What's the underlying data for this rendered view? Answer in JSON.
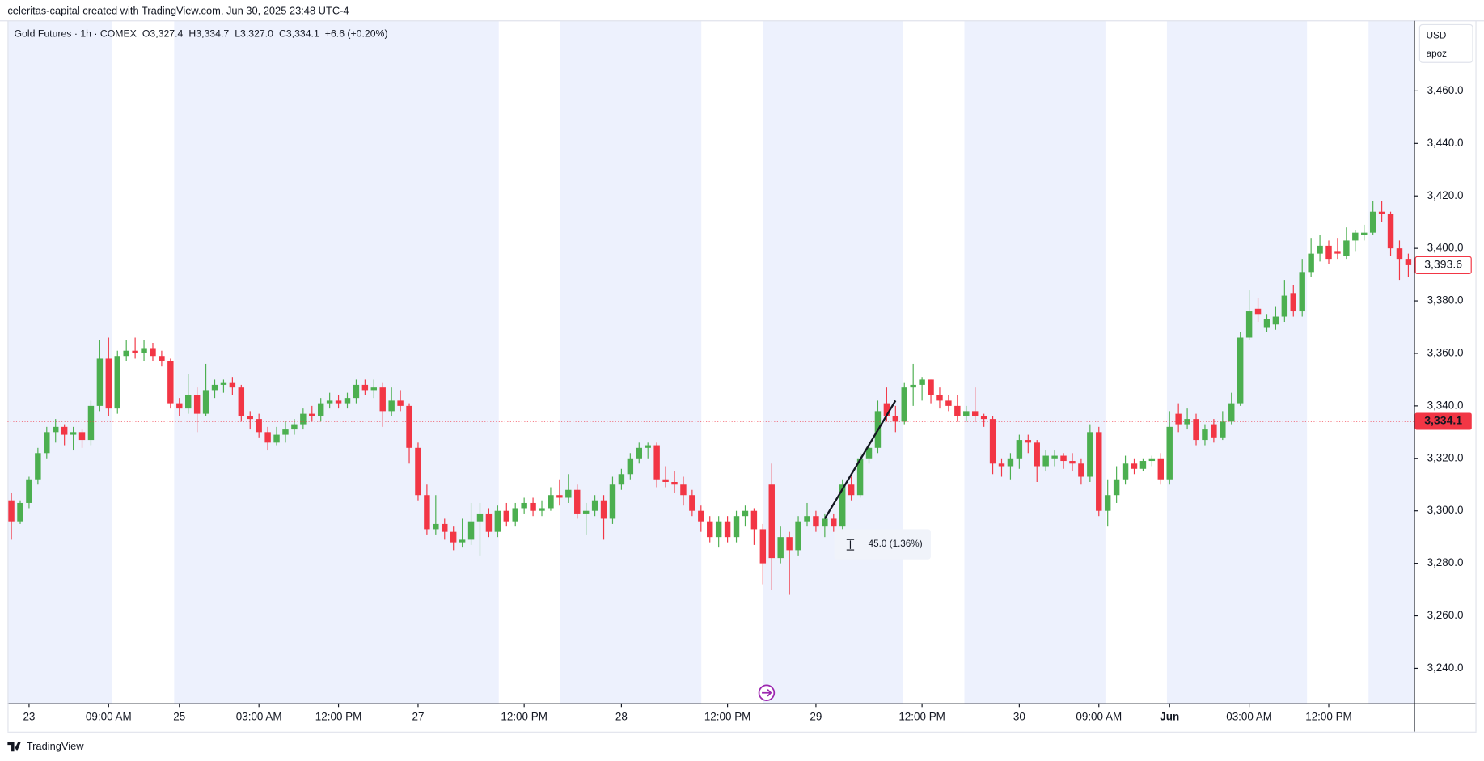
{
  "header": {
    "attribution": "celeritas-capital created with TradingView.com, Jun 30, 2025 23:48 UTC-4",
    "footer": "TradingView"
  },
  "chart_data": {
    "type": "candlestick",
    "symbol": "Gold Futures · 1h · COMEX",
    "legend_values": [
      {
        "name": "O",
        "value": 3327.4,
        "label": "3,327.4"
      },
      {
        "name": "H",
        "value": 3334.7,
        "label": "3,334.7"
      },
      {
        "name": "L",
        "value": 3327.0,
        "label": "3,327.0"
      },
      {
        "name": "C",
        "value": 3334.1,
        "label": "3,334.1"
      }
    ],
    "change": "+6.6 (+0.20%)",
    "currency": "USD",
    "axis_note": "apoz",
    "up_color": "#4caf50",
    "down_color": "#f23645",
    "ohlc": [
      [
        3304,
        3307,
        3289,
        3296
      ],
      [
        3296,
        3304,
        3295,
        3303
      ],
      [
        3303,
        3313,
        3301,
        3312
      ],
      [
        3312,
        3324,
        3310,
        3322
      ],
      [
        3322,
        3332,
        3320,
        3330
      ],
      [
        3330,
        3335,
        3326,
        3332
      ],
      [
        3332,
        3333,
        3325,
        3329
      ],
      [
        3329,
        3332,
        3323,
        3330
      ],
      [
        3330,
        3331,
        3324,
        3327
      ],
      [
        3327,
        3342,
        3325,
        3340
      ],
      [
        3340,
        3365,
        3338,
        3358
      ],
      [
        3358,
        3366,
        3336,
        3339
      ],
      [
        3339,
        3361,
        3337,
        3359
      ],
      [
        3359,
        3365,
        3357,
        3361
      ],
      [
        3361,
        3366,
        3358,
        3360
      ],
      [
        3360,
        3365,
        3357,
        3362
      ],
      [
        3362,
        3364,
        3357,
        3359
      ],
      [
        3359,
        3361,
        3355,
        3357
      ],
      [
        3357,
        3358,
        3339,
        3341
      ],
      [
        3341,
        3343,
        3336,
        3339
      ],
      [
        3339,
        3352,
        3337,
        3344
      ],
      [
        3344,
        3347,
        3330,
        3337
      ],
      [
        3337,
        3356,
        3336,
        3346
      ],
      [
        3346,
        3350,
        3343,
        3348
      ],
      [
        3348,
        3350,
        3345,
        3349
      ],
      [
        3349,
        3351,
        3344,
        3347
      ],
      [
        3347,
        3348,
        3334,
        3336
      ],
      [
        3336,
        3338,
        3331,
        3335
      ],
      [
        3335,
        3337,
        3328,
        3330
      ],
      [
        3330,
        3332,
        3323,
        3326
      ],
      [
        3326,
        3332,
        3325,
        3329
      ],
      [
        3329,
        3334,
        3326,
        3331
      ],
      [
        3331,
        3335,
        3329,
        3333
      ],
      [
        3333,
        3339,
        3331,
        3337
      ],
      [
        3337,
        3340,
        3334,
        3336
      ],
      [
        3336,
        3343,
        3334,
        3341
      ],
      [
        3341,
        3345,
        3339,
        3342
      ],
      [
        3342,
        3344,
        3339,
        3341
      ],
      [
        3341,
        3345,
        3339,
        3343
      ],
      [
        3343,
        3350,
        3341,
        3348
      ],
      [
        3348,
        3350,
        3344,
        3346
      ],
      [
        3346,
        3350,
        3343,
        3347
      ],
      [
        3347,
        3349,
        3332,
        3338
      ],
      [
        3338,
        3347,
        3336,
        3342
      ],
      [
        3342,
        3346,
        3338,
        3340
      ],
      [
        3340,
        3341,
        3318,
        3324
      ],
      [
        3324,
        3326,
        3304,
        3306
      ],
      [
        3306,
        3310,
        3291,
        3293
      ],
      [
        3293,
        3306,
        3291,
        3295
      ],
      [
        3295,
        3297,
        3289,
        3292
      ],
      [
        3292,
        3294,
        3285,
        3288
      ],
      [
        3288,
        3297,
        3286,
        3289
      ],
      [
        3289,
        3303,
        3287,
        3296
      ],
      [
        3296,
        3303,
        3283,
        3299
      ],
      [
        3299,
        3301,
        3290,
        3292
      ],
      [
        3292,
        3302,
        3290,
        3300
      ],
      [
        3300,
        3303,
        3294,
        3296
      ],
      [
        3296,
        3303,
        3294,
        3301
      ],
      [
        3301,
        3305,
        3299,
        3303
      ],
      [
        3303,
        3305,
        3298,
        3300
      ],
      [
        3300,
        3304,
        3298,
        3301
      ],
      [
        3301,
        3309,
        3300,
        3306
      ],
      [
        3306,
        3312,
        3302,
        3305
      ],
      [
        3305,
        3314,
        3303,
        3308
      ],
      [
        3308,
        3310,
        3297,
        3299
      ],
      [
        3299,
        3303,
        3291,
        3300
      ],
      [
        3300,
        3306,
        3298,
        3304
      ],
      [
        3304,
        3306,
        3289,
        3297
      ],
      [
        3297,
        3313,
        3295,
        3310
      ],
      [
        3310,
        3316,
        3308,
        3314
      ],
      [
        3314,
        3322,
        3312,
        3320
      ],
      [
        3320,
        3326,
        3318,
        3324
      ],
      [
        3324,
        3326,
        3320,
        3325
      ],
      [
        3325,
        3326,
        3309,
        3312
      ],
      [
        3312,
        3317,
        3309,
        3311
      ],
      [
        3311,
        3315,
        3307,
        3310
      ],
      [
        3310,
        3313,
        3302,
        3306
      ],
      [
        3306,
        3308,
        3298,
        3300
      ],
      [
        3300,
        3302,
        3292,
        3296
      ],
      [
        3296,
        3298,
        3288,
        3290
      ],
      [
        3290,
        3298,
        3286,
        3296
      ],
      [
        3296,
        3298,
        3288,
        3290
      ],
      [
        3290,
        3300,
        3288,
        3298
      ],
      [
        3298,
        3302,
        3294,
        3300
      ],
      [
        3300,
        3301,
        3287,
        3293
      ],
      [
        3293,
        3295,
        3272,
        3280
      ],
      [
        3310,
        3318,
        3270,
        3282
      ],
      [
        3282,
        3294,
        3280,
        3290
      ],
      [
        3290,
        3292,
        3268,
        3285
      ],
      [
        3285,
        3298,
        3283,
        3296
      ],
      [
        3296,
        3303,
        3294,
        3298
      ],
      [
        3298,
        3300,
        3292,
        3294
      ],
      [
        3294,
        3299,
        3290,
        3297
      ],
      [
        3297,
        3299,
        3292,
        3294
      ],
      [
        3294,
        3312,
        3293,
        3310
      ],
      [
        3310,
        3313,
        3304,
        3306
      ],
      [
        3306,
        3322,
        3305,
        3320
      ],
      [
        3320,
        3326,
        3318,
        3324
      ],
      [
        3324,
        3342,
        3322,
        3338
      ],
      [
        3341,
        3347,
        3334,
        3336
      ],
      [
        3336,
        3340,
        3330,
        3334
      ],
      [
        3334,
        3349,
        3333,
        3347
      ],
      [
        3347,
        3356,
        3340,
        3348
      ],
      [
        3348,
        3351,
        3342,
        3350
      ],
      [
        3350,
        3350,
        3341,
        3344
      ],
      [
        3344,
        3347,
        3339,
        3342
      ],
      [
        3342,
        3344,
        3338,
        3340
      ],
      [
        3340,
        3344,
        3334,
        3336
      ],
      [
        3336,
        3340,
        3334,
        3338
      ],
      [
        3338,
        3347,
        3334,
        3336
      ],
      [
        3336,
        3337,
        3332,
        3335
      ],
      [
        3335,
        3336,
        3314,
        3318
      ],
      [
        3318,
        3320,
        3313,
        3317
      ],
      [
        3317,
        3322,
        3312,
        3320
      ],
      [
        3320,
        3329,
        3316,
        3327
      ],
      [
        3327,
        3329,
        3322,
        3326
      ],
      [
        3326,
        3327,
        3311,
        3317
      ],
      [
        3317,
        3323,
        3315,
        3321
      ],
      [
        3320,
        3323,
        3317,
        3321
      ],
      [
        3321,
        3322,
        3316,
        3319
      ],
      [
        3319,
        3322,
        3315,
        3318
      ],
      [
        3318,
        3320,
        3310,
        3313
      ],
      [
        3313,
        3333,
        3311,
        3330
      ],
      [
        3330,
        3332,
        3298,
        3300
      ],
      [
        3300,
        3312,
        3294,
        3306
      ],
      [
        3306,
        3317,
        3303,
        3312
      ],
      [
        3312,
        3321,
        3310,
        3318
      ],
      [
        3318,
        3320,
        3314,
        3316
      ],
      [
        3316,
        3320,
        3315,
        3319
      ],
      [
        3319,
        3321,
        3317,
        3320
      ],
      [
        3320,
        3322,
        3310,
        3312
      ],
      [
        3312,
        3338,
        3310,
        3332
      ],
      [
        3337,
        3341,
        3330,
        3333
      ],
      [
        3333,
        3339,
        3331,
        3335
      ],
      [
        3335,
        3337,
        3325,
        3327
      ],
      [
        3327,
        3333,
        3325,
        3331
      ],
      [
        3333,
        3335,
        3326,
        3328
      ],
      [
        3328,
        3338,
        3327,
        3334
      ],
      [
        3334,
        3345,
        3333,
        3341
      ],
      [
        3341,
        3368,
        3340,
        3366
      ],
      [
        3366,
        3384,
        3365,
        3376
      ],
      [
        3377,
        3381,
        3372,
        3375
      ],
      [
        3370,
        3375,
        3368,
        3373
      ],
      [
        3371,
        3378,
        3369,
        3374
      ],
      [
        3374,
        3388,
        3372,
        3382
      ],
      [
        3383,
        3386,
        3374,
        3376
      ],
      [
        3376,
        3396,
        3374,
        3391
      ],
      [
        3391,
        3404,
        3389,
        3398
      ],
      [
        3398,
        3405,
        3395,
        3401
      ],
      [
        3401,
        3403,
        3394,
        3396
      ],
      [
        3399,
        3404,
        3396,
        3398
      ],
      [
        3397,
        3408,
        3396,
        3403
      ],
      [
        3403,
        3407,
        3399,
        3406
      ],
      [
        3405,
        3409,
        3403,
        3406
      ],
      [
        3406,
        3418,
        3405,
        3414
      ],
      [
        3414,
        3418,
        3410,
        3413
      ],
      [
        3413,
        3414,
        3397,
        3400
      ],
      [
        3400,
        3403,
        3388,
        3396
      ],
      [
        3396,
        3398,
        3389,
        3393.6
      ]
    ],
    "xlim": [
      -0.43,
      158.64
    ],
    "xticks": [
      {
        "value": 2,
        "label": "23"
      },
      {
        "value": 11,
        "label": "09:00 AM"
      },
      {
        "value": 19,
        "label": "25"
      },
      {
        "value": 28,
        "label": "03:00 AM"
      },
      {
        "value": 37,
        "label": "12:00 PM"
      },
      {
        "value": 46,
        "label": "27"
      },
      {
        "value": 58,
        "label": "12:00 PM"
      },
      {
        "value": 69,
        "label": "28"
      },
      {
        "value": 81,
        "label": "12:00 PM"
      },
      {
        "value": 91,
        "label": "29"
      },
      {
        "value": 103,
        "label": "12:00 PM"
      },
      {
        "value": 114,
        "label": "30"
      },
      {
        "value": 123,
        "label": "09:00 AM"
      },
      {
        "value": 131,
        "label": "Jun"
      },
      {
        "value": 140,
        "label": "03:00 AM"
      },
      {
        "value": 149,
        "label": "12:00 PM"
      }
    ],
    "ylim": [
      3226.7,
      3486.7
    ],
    "yticks": [
      {
        "value": 3240,
        "label": "3,240.0"
      },
      {
        "value": 3260,
        "label": "3,260.0"
      },
      {
        "value": 3280,
        "label": "3,280.0"
      },
      {
        "value": 3300,
        "label": "3,300.0"
      },
      {
        "value": 3320,
        "label": "3,320.0"
      },
      {
        "value": 3340,
        "label": "3,340.0"
      },
      {
        "value": 3360,
        "label": "3,360.0"
      },
      {
        "value": 3380,
        "label": "3,380.0"
      },
      {
        "value": 3400,
        "label": "3,400.0"
      },
      {
        "value": 3420,
        "label": "3,420.0"
      },
      {
        "value": 3440,
        "label": "3,440.0"
      },
      {
        "value": 3460,
        "label": "3,460.0"
      }
    ],
    "price_lines": [
      {
        "value": 3393.6,
        "label": "3,393.6",
        "style": "outline"
      },
      {
        "value": 3334.1,
        "label": "3,334.1",
        "style": "dotted"
      }
    ],
    "measure": {
      "from": {
        "x": 92,
        "y": 3297
      },
      "to": {
        "x": 100,
        "y": 3342
      },
      "label": "45.0 (1.36%)"
    }
  }
}
